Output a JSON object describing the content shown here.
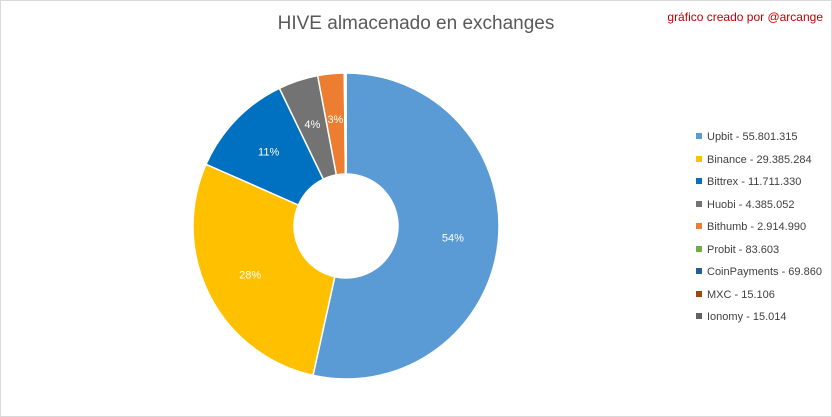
{
  "chart_data": {
    "type": "pie",
    "title": "HIVE almacenado en exchanges",
    "credit": "gráfico creado por @arcange",
    "legend_position": "right",
    "series": [
      {
        "name": "Upbit",
        "value": 55801315,
        "legend": "Upbit - 55.801.315",
        "label": "54%",
        "color": "#5b9bd5"
      },
      {
        "name": "Binance",
        "value": 29385284,
        "legend": "Binance - 29.385.284",
        "label": "28%",
        "color": "#ffc000"
      },
      {
        "name": "Bittrex",
        "value": 11711330,
        "legend": "Bittrex - 11.711.330",
        "label": "11%",
        "color": "#0070c0"
      },
      {
        "name": "Huobi",
        "value": 4385052,
        "legend": "Huobi - 4.385.052",
        "label": "4%",
        "color": "#737373"
      },
      {
        "name": "Bithumb",
        "value": 2914990,
        "legend": "Bithumb - 2.914.990",
        "label": "3%",
        "color": "#ed7d31"
      },
      {
        "name": "Probit",
        "value": 83603,
        "legend": "Probit - 83.603",
        "label": "",
        "color": "#70ad47"
      },
      {
        "name": "CoinPayments",
        "value": 69860,
        "legend": "CoinPayments - 69.860",
        "label": "",
        "color": "#255e91"
      },
      {
        "name": "MXC",
        "value": 15106,
        "legend": "MXC - 15.106",
        "label": "",
        "color": "#9e480e"
      },
      {
        "name": "Ionomy",
        "value": 15014,
        "legend": "Ionomy - 15.014",
        "label": "",
        "color": "#636363"
      }
    ]
  }
}
